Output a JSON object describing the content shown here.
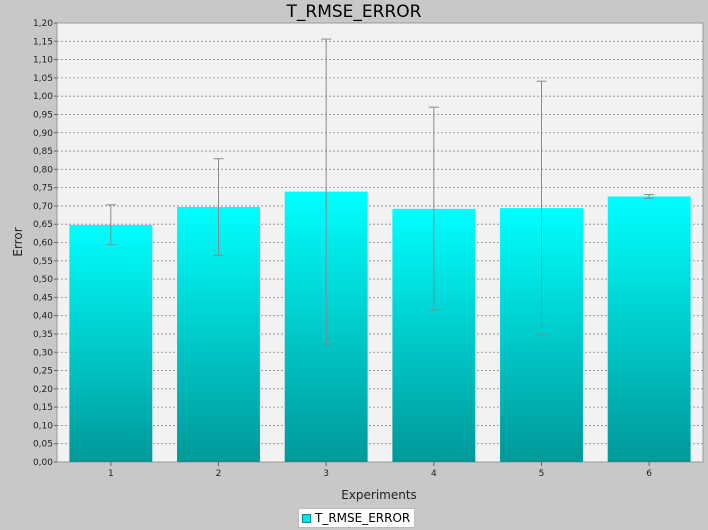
{
  "chart_data": {
    "type": "bar",
    "title": "T_RMSE_ERROR",
    "xlabel": "Experiments",
    "ylabel": "Error",
    "ylim": [
      0,
      1.2
    ],
    "ytick_step": 0.05,
    "grid": true,
    "legend_placement": "bottom-center",
    "categories": [
      "1",
      "2",
      "3",
      "4",
      "5",
      "6"
    ],
    "series": [
      {
        "name": "T_RMSE_ERROR",
        "color": "#00e5ee",
        "values": [
          0.648,
          0.697,
          0.739,
          0.692,
          0.694,
          0.726
        ],
        "error_low": [
          0.594,
          0.565,
          0.323,
          0.415,
          0.347,
          0.721
        ],
        "error_high": [
          0.703,
          0.829,
          1.156,
          0.97,
          1.041,
          0.731
        ]
      }
    ]
  }
}
